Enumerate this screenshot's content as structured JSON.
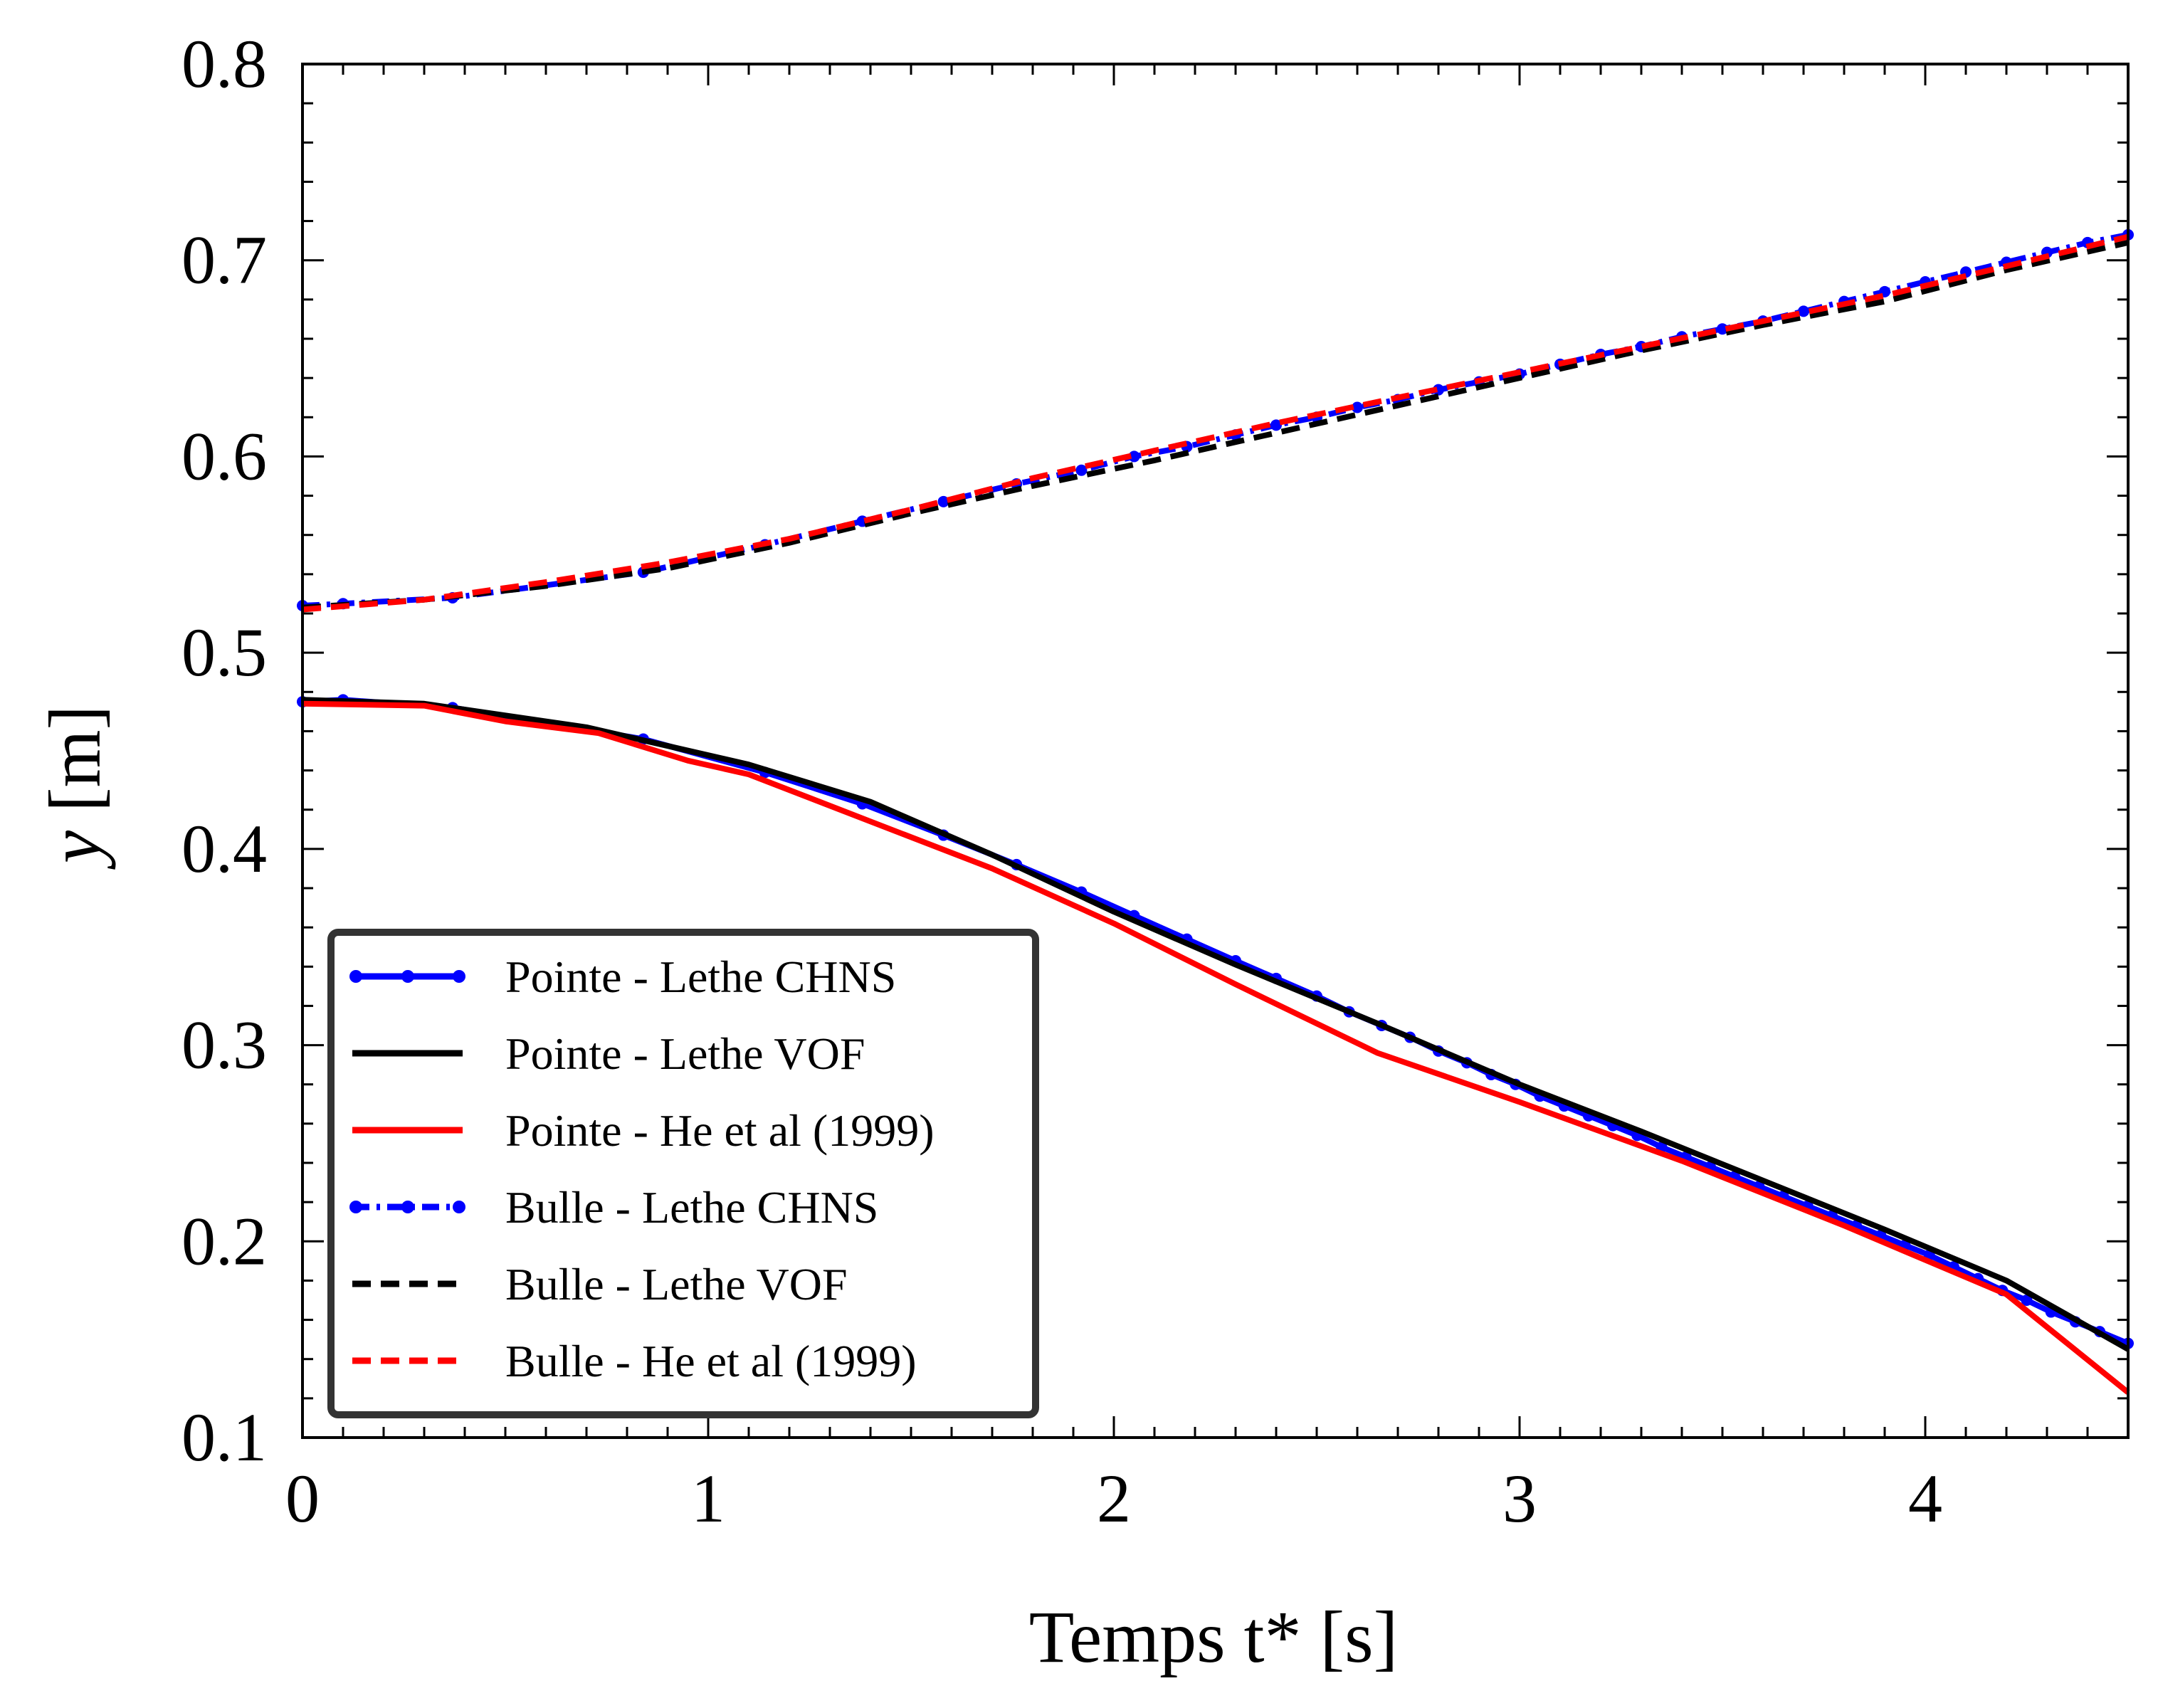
{
  "chart_data": {
    "type": "line",
    "title": "",
    "xlabel": "Temps t* [s]",
    "ylabel_italic": "y",
    "ylabel_unit": "[m]",
    "xlim": [
      0,
      4.5
    ],
    "ylim": [
      0.1,
      0.8
    ],
    "x_ticks": [
      0,
      1,
      2,
      3,
      4
    ],
    "x_tick_labels": [
      "0",
      "1",
      "2",
      "3",
      "4"
    ],
    "y_ticks": [
      0.1,
      0.2,
      0.3,
      0.4,
      0.5,
      0.6,
      0.7,
      0.8
    ],
    "y_tick_labels": [
      "0.1",
      "0.2",
      "0.3",
      "0.4",
      "0.5",
      "0.6",
      "0.7",
      "0.8"
    ],
    "grid": false,
    "legend_position": "lower-left",
    "series": [
      {
        "name": "Pointe - Lethe CHNS",
        "color": "#0000ff",
        "style": "solid",
        "marker": "dot",
        "x": [
          0.0,
          0.1,
          0.37,
          0.84,
          1.14,
          1.38,
          1.58,
          1.76,
          1.92,
          2.05,
          2.18,
          2.3,
          2.4,
          2.5,
          2.58,
          2.66,
          2.73,
          2.8,
          2.87,
          2.93,
          2.99,
          3.05,
          3.11,
          3.17,
          3.23,
          3.29,
          3.35,
          3.41,
          3.47,
          3.53,
          3.59,
          3.65,
          3.71,
          3.77,
          3.83,
          3.89,
          3.95,
          4.01,
          4.07,
          4.13,
          4.19,
          4.25,
          4.31,
          4.37,
          4.43,
          4.5
        ],
        "y": [
          0.475,
          0.476,
          0.472,
          0.456,
          0.439,
          0.423,
          0.407,
          0.392,
          0.378,
          0.366,
          0.354,
          0.343,
          0.334,
          0.325,
          0.317,
          0.31,
          0.304,
          0.297,
          0.291,
          0.285,
          0.28,
          0.274,
          0.269,
          0.264,
          0.259,
          0.254,
          0.248,
          0.243,
          0.238,
          0.233,
          0.228,
          0.223,
          0.218,
          0.213,
          0.208,
          0.203,
          0.198,
          0.193,
          0.187,
          0.181,
          0.175,
          0.17,
          0.164,
          0.159,
          0.154,
          0.148
        ]
      },
      {
        "name": "Pointe - Lethe VOF",
        "color": "#000000",
        "style": "solid",
        "marker": "none",
        "x": [
          0.0,
          0.3,
          0.7,
          1.1,
          1.4,
          1.7,
          2.0,
          2.3,
          2.65,
          3.0,
          3.3,
          3.6,
          3.9,
          4.2,
          4.5
        ],
        "y": [
          0.476,
          0.474,
          0.462,
          0.443,
          0.424,
          0.397,
          0.368,
          0.341,
          0.311,
          0.28,
          0.256,
          0.231,
          0.206,
          0.18,
          0.145
        ]
      },
      {
        "name": "Pointe - He et al (1999)",
        "color": "#ff0000",
        "style": "solid",
        "marker": "none",
        "x": [
          0.0,
          0.3,
          0.5,
          0.73,
          0.95,
          1.1,
          1.4,
          1.7,
          2.0,
          2.3,
          2.65,
          3.0,
          3.4,
          3.8,
          4.2,
          4.5
        ],
        "y": [
          0.474,
          0.473,
          0.465,
          0.459,
          0.445,
          0.438,
          0.414,
          0.39,
          0.362,
          0.331,
          0.296,
          0.271,
          0.241,
          0.208,
          0.173,
          0.123
        ]
      },
      {
        "name": "Bulle - Lethe CHNS",
        "color": "#0000ff",
        "style": "dashdot",
        "marker": "dot",
        "x": [
          0.0,
          0.1,
          0.37,
          0.84,
          1.14,
          1.38,
          1.58,
          1.76,
          1.92,
          2.05,
          2.18,
          2.3,
          2.4,
          2.5,
          2.6,
          2.7,
          2.8,
          2.9,
          3.0,
          3.1,
          3.2,
          3.3,
          3.4,
          3.5,
          3.6,
          3.7,
          3.8,
          3.9,
          4.0,
          4.1,
          4.2,
          4.3,
          4.4,
          4.5
        ],
        "y": [
          0.524,
          0.525,
          0.528,
          0.541,
          0.555,
          0.567,
          0.577,
          0.586,
          0.593,
          0.6,
          0.605,
          0.611,
          0.616,
          0.62,
          0.625,
          0.629,
          0.634,
          0.638,
          0.642,
          0.647,
          0.652,
          0.656,
          0.661,
          0.665,
          0.669,
          0.674,
          0.679,
          0.684,
          0.689,
          0.694,
          0.699,
          0.704,
          0.709,
          0.713
        ]
      },
      {
        "name": "Bulle - Lethe VOF",
        "color": "#000000",
        "style": "dashed",
        "marker": "none",
        "x": [
          0.0,
          0.3,
          0.6,
          0.9,
          1.2,
          1.5,
          1.8,
          2.1,
          2.4,
          2.7,
          3.0,
          3.3,
          3.6,
          3.9,
          4.2,
          4.5
        ],
        "y": [
          0.523,
          0.527,
          0.534,
          0.543,
          0.556,
          0.571,
          0.585,
          0.598,
          0.612,
          0.626,
          0.64,
          0.654,
          0.667,
          0.679,
          0.695,
          0.709
        ]
      },
      {
        "name": "Bulle - He et al (1999)",
        "color": "#ff0000",
        "style": "dashed",
        "marker": "none",
        "x": [
          0.0,
          0.3,
          0.6,
          0.9,
          1.2,
          1.5,
          1.8,
          2.1,
          2.4,
          2.7,
          3.0,
          3.3,
          3.6,
          3.9,
          4.2,
          4.5
        ],
        "y": [
          0.522,
          0.527,
          0.536,
          0.546,
          0.558,
          0.573,
          0.589,
          0.603,
          0.617,
          0.63,
          0.643,
          0.656,
          0.669,
          0.682,
          0.697,
          0.712
        ]
      }
    ]
  }
}
